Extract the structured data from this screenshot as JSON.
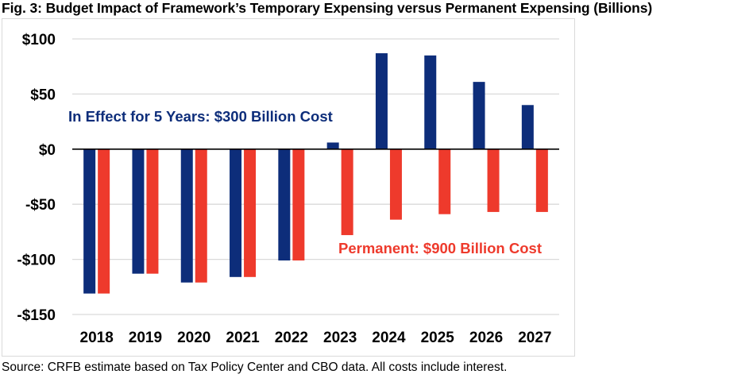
{
  "title": "Fig. 3: Budget Impact of Framework’s Temporary Expensing versus Permanent Expensing (Billions)",
  "source": "Source: CRFB estimate based on Tax Policy Center and CBO data. All costs include interest.",
  "colors": {
    "temporary": "#0d2d7a",
    "permanent": "#ee3a2c",
    "grid": "#d9d9d9",
    "axis": "#000000"
  },
  "chart_data": {
    "type": "bar",
    "title": "Fig. 3: Budget Impact of Framework’s Temporary Expensing versus Permanent Expensing (Billions)",
    "xlabel": "",
    "ylabel": "",
    "ylim": [
      -150,
      100
    ],
    "yticks": [
      100,
      50,
      0,
      -50,
      -100,
      -150
    ],
    "ytick_labels": [
      "$100",
      "$50",
      "$0",
      "-$50",
      "-$100",
      "-$150"
    ],
    "categories": [
      "2018",
      "2019",
      "2020",
      "2021",
      "2022",
      "2023",
      "2024",
      "2025",
      "2026",
      "2027"
    ],
    "series": [
      {
        "name": "In Effect for 5 Years",
        "values": [
          -131,
          -113,
          -121,
          -116,
          -101,
          6,
          87,
          85,
          61,
          40
        ]
      },
      {
        "name": "Permanent",
        "values": [
          -131,
          -113,
          -121,
          -116,
          -101,
          -78,
          -64,
          -59,
          -57,
          -57
        ]
      }
    ],
    "annotations": [
      {
        "text": "In Effect for 5 Years: $300 Billion Cost",
        "series": "temporary"
      },
      {
        "text": "Permanent: $900 Billion Cost",
        "series": "permanent"
      }
    ],
    "grid": true,
    "legend": "none"
  }
}
